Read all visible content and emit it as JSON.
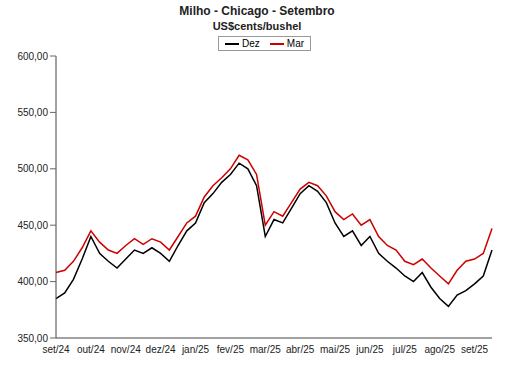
{
  "chart_data": {
    "type": "line",
    "title": "Milho - Chicago - Setembro",
    "subtitle": "US$cents/bushel",
    "categories": [
      "set/24",
      null,
      null,
      null,
      "out/24",
      null,
      null,
      null,
      "nov/24",
      null,
      null,
      null,
      "dez/24",
      null,
      null,
      null,
      "jan/25",
      null,
      null,
      null,
      "fev/25",
      null,
      null,
      null,
      "mar/25",
      null,
      null,
      null,
      "abr/25",
      null,
      null,
      null,
      "mai/25",
      null,
      null,
      null,
      "jun/25",
      null,
      null,
      null,
      "jul/25",
      null,
      null,
      null,
      "ago/25",
      null,
      null,
      null,
      "set/25",
      null,
      null
    ],
    "series": [
      {
        "name": "Dez",
        "color": "#000000",
        "values": [
          385,
          390,
          402,
          420,
          440,
          425,
          418,
          412,
          420,
          428,
          425,
          430,
          425,
          418,
          432,
          445,
          452,
          470,
          478,
          488,
          495,
          505,
          500,
          485,
          440,
          455,
          452,
          465,
          478,
          485,
          480,
          470,
          452,
          440,
          445,
          432,
          440,
          425,
          418,
          412,
          405,
          400,
          408,
          395,
          385,
          378,
          388,
          392,
          398,
          405,
          428
        ]
      },
      {
        "name": "Mar",
        "color": "#cc0000",
        "values": [
          408,
          410,
          418,
          430,
          445,
          435,
          428,
          425,
          432,
          438,
          433,
          438,
          435,
          428,
          440,
          452,
          458,
          475,
          485,
          492,
          500,
          512,
          508,
          495,
          450,
          462,
          458,
          470,
          482,
          488,
          485,
          476,
          462,
          455,
          460,
          450,
          455,
          440,
          432,
          428,
          418,
          415,
          420,
          412,
          405,
          398,
          410,
          418,
          420,
          425,
          447
        ]
      }
    ],
    "ylim": [
      350,
      600
    ],
    "yticks": [
      {
        "value": 350,
        "label": "350,00"
      },
      {
        "value": 400,
        "label": "400,00"
      },
      {
        "value": 450,
        "label": "450,00"
      },
      {
        "value": 500,
        "label": "500,00"
      },
      {
        "value": 550,
        "label": "550,00"
      },
      {
        "value": 600,
        "label": "600,00"
      }
    ],
    "grid": false,
    "legend": "top"
  }
}
